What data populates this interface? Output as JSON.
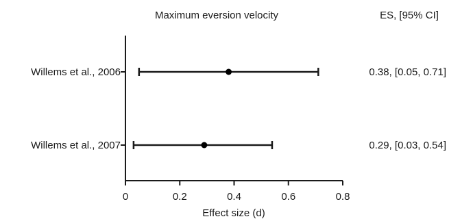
{
  "chart_data": {
    "type": "forest",
    "title": "Maximum eversion velocity",
    "ci_header": "ES, [95% CI]",
    "xlabel": "Effect size (d)",
    "xlim": [
      0,
      0.8
    ],
    "xticks": [
      0,
      0.2,
      0.4,
      0.6,
      0.8
    ],
    "xtick_labels": [
      "0",
      "0.2",
      "0.4",
      "0.6",
      "0.8"
    ],
    "grid": false,
    "studies": [
      {
        "label": "Willems et al., 2006",
        "es": 0.38,
        "lower": 0.05,
        "upper": 0.71,
        "ci_text": "0.38, [0.05, 0.71]"
      },
      {
        "label": "Willems et al., 2007",
        "es": 0.29,
        "lower": 0.03,
        "upper": 0.54,
        "ci_text": "0.29, [0.03, 0.54]"
      }
    ]
  }
}
